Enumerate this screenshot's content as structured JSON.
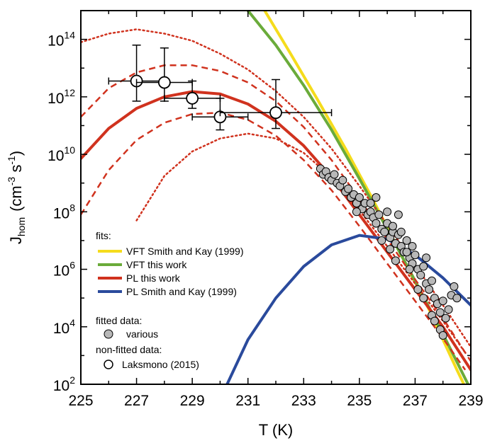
{
  "chart_data": {
    "type": "line",
    "xlabel": "T (K)",
    "ylabel_main": "J",
    "ylabel_sub": "hom",
    "ylabel_units_open": "(cm",
    "ylabel_units_exp1": "-3",
    "ylabel_units_mid": " s",
    "ylabel_units_exp2": "-1",
    "ylabel_units_close": ")",
    "xlim": [
      225,
      239
    ],
    "ylim_log10": [
      2,
      15
    ],
    "x_ticks": [
      225,
      227,
      229,
      231,
      233,
      235,
      237,
      239
    ],
    "x_tick_labels": [
      "225",
      "227",
      "229",
      "231",
      "233",
      "235",
      "237",
      "239"
    ],
    "y_ticks_log10": [
      2,
      4,
      6,
      8,
      10,
      12,
      14
    ],
    "y_tick_base": "10",
    "y_tick_exponents": [
      "2",
      "4",
      "6",
      "8",
      "10",
      "12",
      "14"
    ],
    "grid": false,
    "legend": {
      "position": "lower-left",
      "fits_title": "fits:",
      "fits": [
        {
          "name": "VFT Smith and Kay (1999)",
          "color": "#f5dc1c"
        },
        {
          "name": "VFT this work",
          "color": "#6aab3a"
        },
        {
          "name": "PL this work",
          "color": "#d0321e"
        },
        {
          "name": "PL Smith and Kay (1999)",
          "color": "#2a4a9c"
        }
      ],
      "fitted_title": "fitted data:",
      "fitted_label": "various",
      "nonfitted_title": "non-fitted data:",
      "nonfitted_label": "Laksmono (2015)"
    },
    "series": [
      {
        "name": "VFT Smith and Kay (1999)",
        "color": "#f5dc1c",
        "style": "solid",
        "points": [
          [
            231.6,
            15
          ],
          [
            232.5,
            13.55
          ],
          [
            233.5,
            11.9
          ],
          [
            234.5,
            10.2
          ],
          [
            235.5,
            8.4
          ],
          [
            236.5,
            6.5
          ],
          [
            237.5,
            4.6
          ],
          [
            238.5,
            2.5
          ],
          [
            238.75,
            2
          ]
        ]
      },
      {
        "name": "VFT this work",
        "color": "#6aab3a",
        "style": "solid",
        "points": [
          [
            231.0,
            15
          ],
          [
            232.0,
            13.8
          ],
          [
            233.0,
            12.4
          ],
          [
            234.0,
            10.85
          ],
          [
            235.0,
            9.15
          ],
          [
            236.0,
            7.4
          ],
          [
            237.0,
            5.6
          ],
          [
            238.0,
            3.75
          ],
          [
            238.9,
            2
          ]
        ]
      },
      {
        "name": "PL this work",
        "color": "#d0321e",
        "style": "solid",
        "points": [
          [
            225.0,
            9.85
          ],
          [
            226.0,
            10.9
          ],
          [
            227.0,
            11.6
          ],
          [
            228.0,
            12.0
          ],
          [
            229.0,
            12.18
          ],
          [
            230.0,
            12.1
          ],
          [
            231.0,
            11.75
          ],
          [
            232.0,
            11.15
          ],
          [
            233.0,
            10.3
          ],
          [
            234.0,
            9.2
          ],
          [
            235.0,
            7.9
          ],
          [
            236.0,
            6.6
          ],
          [
            237.0,
            5.3
          ],
          [
            238.0,
            4.0
          ],
          [
            239.0,
            2.5
          ]
        ]
      },
      {
        "name": "PL this work (upper bound, dashed)",
        "color": "#d0321e",
        "style": "dashed",
        "points": [
          [
            225.0,
            11.3
          ],
          [
            226.0,
            12.3
          ],
          [
            227.0,
            12.85
          ],
          [
            228.0,
            13.1
          ],
          [
            229.0,
            13.1
          ],
          [
            230.0,
            12.9
          ],
          [
            231.0,
            12.5
          ],
          [
            232.0,
            11.85
          ],
          [
            233.0,
            10.95
          ],
          [
            234.0,
            9.8
          ],
          [
            235.0,
            8.45
          ],
          [
            236.0,
            7.05
          ],
          [
            237.0,
            5.65
          ],
          [
            238.0,
            4.3
          ],
          [
            239.0,
            2.8
          ]
        ]
      },
      {
        "name": "PL this work (lower bound, dashed)",
        "color": "#d0321e",
        "style": "dashed",
        "points": [
          [
            225.0,
            7.9
          ],
          [
            226.0,
            9.45
          ],
          [
            227.0,
            10.5
          ],
          [
            228.0,
            11.1
          ],
          [
            229.0,
            11.4
          ],
          [
            230.0,
            11.45
          ],
          [
            231.0,
            11.2
          ],
          [
            232.0,
            10.65
          ],
          [
            233.0,
            9.8
          ],
          [
            234.0,
            8.75
          ],
          [
            235.0,
            7.5
          ],
          [
            236.0,
            6.2
          ],
          [
            237.0,
            4.9
          ],
          [
            238.0,
            3.6
          ],
          [
            238.8,
            2.5
          ]
        ]
      },
      {
        "name": "PL this work (upper bound, dotted)",
        "color": "#d0321e",
        "style": "dotted",
        "points": [
          [
            225.0,
            13.9
          ],
          [
            226.0,
            14.2
          ],
          [
            227.0,
            14.35
          ],
          [
            228.0,
            14.2
          ],
          [
            229.0,
            13.95
          ],
          [
            230.0,
            13.5
          ],
          [
            231.0,
            12.95
          ],
          [
            232.0,
            12.2
          ],
          [
            233.0,
            11.3
          ],
          [
            234.0,
            10.2
          ],
          [
            235.0,
            8.9
          ],
          [
            236.0,
            7.55
          ],
          [
            237.0,
            6.15
          ],
          [
            238.0,
            4.75
          ],
          [
            239.0,
            3.3
          ]
        ]
      },
      {
        "name": "PL this work (lower bound, dotted)",
        "color": "#d0321e",
        "style": "dotted",
        "points": [
          [
            227.0,
            7.7
          ],
          [
            228.0,
            9.25
          ],
          [
            229.0,
            10.1
          ],
          [
            230.0,
            10.55
          ],
          [
            231.0,
            10.72
          ],
          [
            232.0,
            10.55
          ],
          [
            233.0,
            10.05
          ],
          [
            234.0,
            9.2
          ],
          [
            235.0,
            8.05
          ],
          [
            236.0,
            6.8
          ],
          [
            237.0,
            5.5
          ],
          [
            238.0,
            4.2
          ],
          [
            238.8,
            3.1
          ]
        ]
      },
      {
        "name": "PL Smith and Kay (1999)",
        "color": "#2a4a9c",
        "style": "solid",
        "points": [
          [
            230.25,
            2
          ],
          [
            231.0,
            3.55
          ],
          [
            232.0,
            5.0
          ],
          [
            233.0,
            6.1
          ],
          [
            234.0,
            6.85
          ],
          [
            235.0,
            7.18
          ],
          [
            236.0,
            7.05
          ],
          [
            237.0,
            6.5
          ],
          [
            238.0,
            5.7
          ],
          [
            239.0,
            4.75
          ]
        ]
      }
    ],
    "fitted_data": {
      "name": "various",
      "points": [
        [
          233.6,
          9.5
        ],
        [
          233.7,
          9.3
        ],
        [
          233.8,
          9.4
        ],
        [
          233.9,
          9.2
        ],
        [
          234.0,
          9.1
        ],
        [
          234.1,
          9.3
        ],
        [
          234.2,
          9.0
        ],
        [
          234.3,
          8.9
        ],
        [
          234.4,
          9.1
        ],
        [
          234.5,
          8.7
        ],
        [
          234.6,
          8.8
        ],
        [
          234.7,
          8.5
        ],
        [
          234.8,
          8.6
        ],
        [
          234.9,
          8.3
        ],
        [
          235.0,
          8.5
        ],
        [
          235.1,
          8.1
        ],
        [
          235.2,
          8.3
        ],
        [
          235.3,
          7.9
        ],
        [
          235.4,
          8.0
        ],
        [
          235.5,
          7.8
        ],
        [
          235.6,
          7.6
        ],
        [
          235.7,
          7.9
        ],
        [
          235.8,
          7.4
        ],
        [
          235.9,
          7.3
        ],
        [
          236.0,
          7.6
        ],
        [
          236.1,
          7.1
        ],
        [
          236.2,
          7.3
        ],
        [
          236.3,
          6.9
        ],
        [
          236.4,
          7.2
        ],
        [
          236.5,
          6.8
        ],
        [
          236.6,
          6.6
        ],
        [
          236.7,
          7.0
        ],
        [
          236.8,
          6.4
        ],
        [
          236.9,
          6.2
        ],
        [
          237.0,
          6.5
        ],
        [
          237.1,
          6.0
        ],
        [
          237.2,
          5.8
        ],
        [
          237.3,
          6.1
        ],
        [
          237.4,
          5.5
        ],
        [
          237.5,
          5.3
        ],
        [
          237.6,
          5.6
        ],
        [
          237.7,
          5.0
        ],
        [
          237.8,
          4.8
        ],
        [
          237.9,
          4.5
        ],
        [
          238.0,
          4.9
        ],
        [
          238.1,
          4.3
        ],
        [
          238.2,
          4.6
        ],
        [
          238.3,
          5.1
        ],
        [
          238.4,
          5.4
        ],
        [
          238.5,
          5.0
        ],
        [
          236.2,
          7.5
        ],
        [
          236.5,
          7.3
        ],
        [
          236.8,
          6.0
        ],
        [
          237.3,
          5.0
        ],
        [
          237.6,
          4.4
        ],
        [
          235.4,
          8.3
        ],
        [
          235.6,
          8.5
        ],
        [
          236.0,
          8.0
        ],
        [
          236.4,
          7.9
        ],
        [
          234.9,
          8.0
        ],
        [
          236.9,
          6.8
        ],
        [
          237.4,
          6.4
        ],
        [
          237.7,
          4.2
        ],
        [
          237.9,
          3.9
        ],
        [
          238.0,
          3.7
        ],
        [
          236.7,
          6.6
        ],
        [
          236.3,
          6.3
        ],
        [
          235.8,
          7.0
        ],
        [
          236.1,
          6.7
        ],
        [
          237.1,
          5.3
        ]
      ]
    },
    "nonfitted_data": {
      "name": "Laksmono (2015)",
      "points": [
        {
          "x": 227.0,
          "y": 12.55,
          "xerr": 1.0,
          "ylo": 11.85,
          "yhi": 13.8
        },
        {
          "x": 228.0,
          "y": 12.5,
          "xerr": 1.0,
          "ylo": 11.85,
          "yhi": 13.7
        },
        {
          "x": 229.0,
          "y": 11.95,
          "xerr": 1.0,
          "ylo": 11.6,
          "yhi": 12.55
        },
        {
          "x": 230.0,
          "y": 11.3,
          "xerr": 1.0,
          "ylo": 10.85,
          "yhi": 11.95
        },
        {
          "x": 232.0,
          "y": 11.45,
          "xerr": 2.0,
          "ylo": 10.9,
          "yhi": 12.6
        }
      ]
    }
  }
}
